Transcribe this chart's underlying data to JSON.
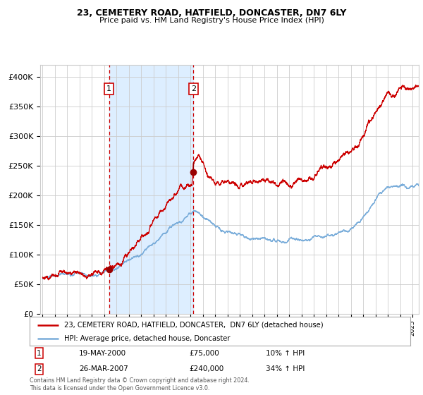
{
  "title1": "23, CEMETERY ROAD, HATFIELD, DONCASTER, DN7 6LY",
  "title2": "Price paid vs. HM Land Registry's House Price Index (HPI)",
  "legend_line1": "23, CEMETERY ROAD, HATFIELD, DONCASTER,  DN7 6LY (detached house)",
  "legend_line2": "HPI: Average price, detached house, Doncaster",
  "transaction1_date": "19-MAY-2000",
  "transaction1_price": 75000,
  "transaction1_hpi": "10% ↑ HPI",
  "transaction1_year": 2000.38,
  "transaction2_date": "26-MAR-2007",
  "transaction2_price": 240000,
  "transaction2_hpi": "34% ↑ HPI",
  "transaction2_year": 2007.22,
  "hpi_color": "#7aadda",
  "price_color": "#cc0000",
  "dot_color": "#990000",
  "shade_color": "#ddeeff",
  "vline_color": "#cc0000",
  "grid_color": "#cccccc",
  "background_color": "#ffffff",
  "footer_text": "Contains HM Land Registry data © Crown copyright and database right 2024.\nThis data is licensed under the Open Government Licence v3.0.",
  "ylim": [
    0,
    420000
  ],
  "yticks": [
    0,
    50000,
    100000,
    150000,
    200000,
    250000,
    300000,
    350000,
    400000
  ],
  "xlim_start": 1994.8,
  "xlim_end": 2025.5
}
